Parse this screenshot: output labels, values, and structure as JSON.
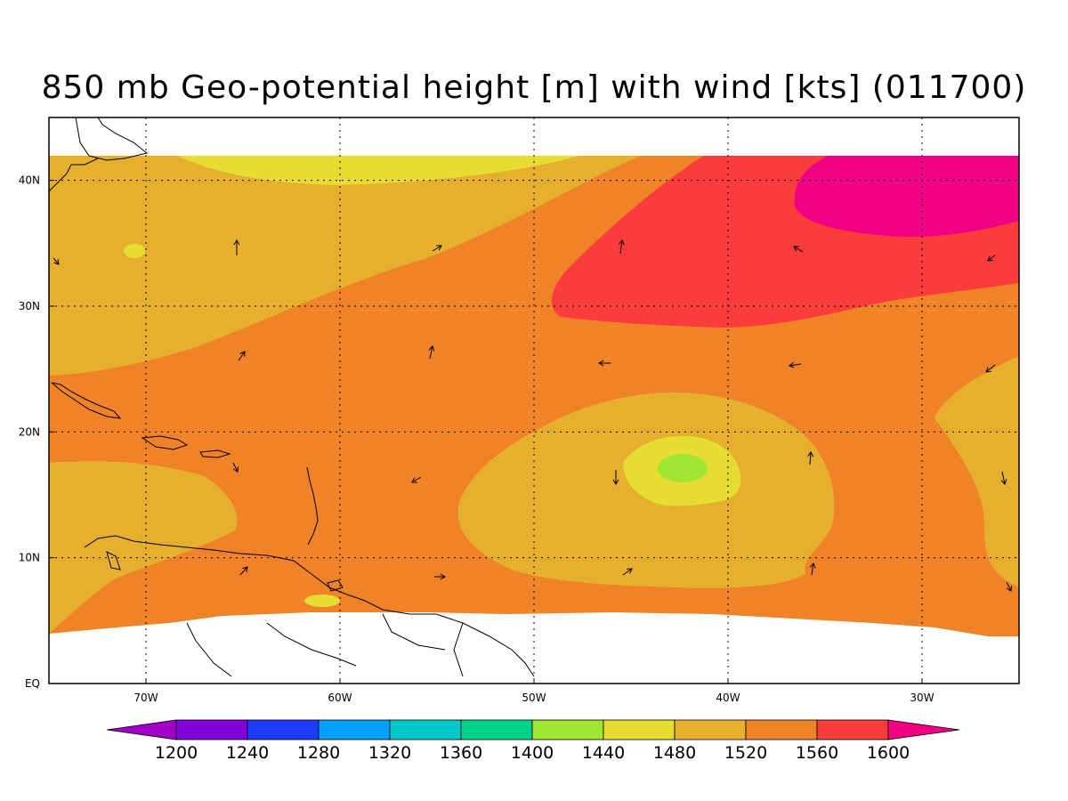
{
  "title": "850 mb Geo-potential height [m] with wind [kts] (011700)",
  "map": {
    "lon_range": [
      -75,
      -25
    ],
    "lat_range": [
      0,
      45
    ],
    "lon_ticks": [
      "70W",
      "60W",
      "50W",
      "40W",
      "30W"
    ],
    "lat_ticks": [
      "EQ",
      "10N",
      "20N",
      "30N",
      "40N"
    ],
    "grid": "dotted"
  },
  "colorbar": {
    "labels": [
      "1200",
      "1240",
      "1280",
      "1320",
      "1360",
      "1400",
      "1440",
      "1480",
      "1520",
      "1560",
      "1600"
    ],
    "colors": [
      "#a000c8",
      "#8200dc",
      "#1e3cff",
      "#00a0ff",
      "#00c8c8",
      "#00d28c",
      "#a0e632",
      "#e6dc32",
      "#e6af2d",
      "#f08228",
      "#fa3c3c",
      "#f00082"
    ]
  },
  "field_colors": {
    "c1440": "#a0e632",
    "c1480": "#e6dc32",
    "c1520": "#e6af2d",
    "c1560": "#f08228",
    "c1600": "#fa3c3c",
    "c1640": "#f00082"
  }
}
